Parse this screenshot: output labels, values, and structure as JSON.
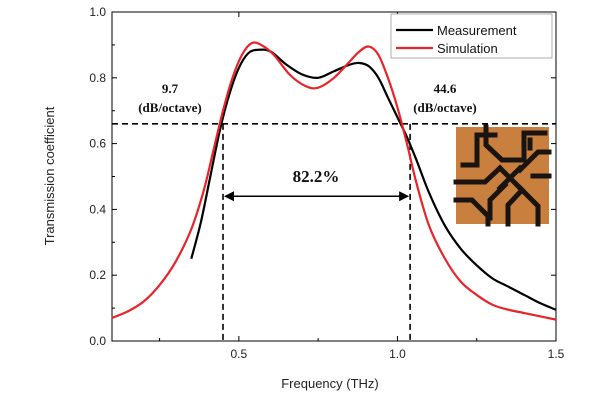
{
  "chart_data": {
    "type": "line",
    "xlabel": "Frequency (THz)",
    "ylabel": "Transmission coefficient",
    "xlim": [
      0.1,
      1.5
    ],
    "ylim": [
      0.0,
      1.0
    ],
    "x_ticks": [
      0.5,
      1.0,
      1.5
    ],
    "x_tick_labels": [
      "0.5",
      "1.0",
      "1.5"
    ],
    "y_ticks": [
      0.0,
      0.2,
      0.4,
      0.6,
      0.8,
      1.0
    ],
    "y_tick_labels": [
      "0.0",
      "0.2",
      "0.4",
      "0.6",
      "0.8",
      "1.0"
    ],
    "legend_position": "top-right",
    "series": [
      {
        "name": "Measurement",
        "color": "#000000",
        "points": [
          [
            0.35,
            0.25
          ],
          [
            0.38,
            0.36
          ],
          [
            0.41,
            0.5
          ],
          [
            0.44,
            0.64
          ],
          [
            0.47,
            0.75
          ],
          [
            0.5,
            0.83
          ],
          [
            0.53,
            0.875
          ],
          [
            0.56,
            0.885
          ],
          [
            0.6,
            0.88
          ],
          [
            0.65,
            0.84
          ],
          [
            0.7,
            0.81
          ],
          [
            0.75,
            0.8
          ],
          [
            0.8,
            0.82
          ],
          [
            0.85,
            0.84
          ],
          [
            0.88,
            0.845
          ],
          [
            0.91,
            0.835
          ],
          [
            0.94,
            0.8
          ],
          [
            0.97,
            0.74
          ],
          [
            1.0,
            0.68
          ],
          [
            1.03,
            0.62
          ],
          [
            1.06,
            0.55
          ],
          [
            1.1,
            0.45
          ],
          [
            1.15,
            0.35
          ],
          [
            1.2,
            0.28
          ],
          [
            1.25,
            0.23
          ],
          [
            1.3,
            0.19
          ],
          [
            1.35,
            0.165
          ],
          [
            1.4,
            0.14
          ],
          [
            1.45,
            0.115
          ],
          [
            1.5,
            0.095
          ]
        ]
      },
      {
        "name": "Simulation",
        "color": "#e8232a",
        "points": [
          [
            0.1,
            0.07
          ],
          [
            0.15,
            0.09
          ],
          [
            0.2,
            0.12
          ],
          [
            0.25,
            0.17
          ],
          [
            0.3,
            0.24
          ],
          [
            0.35,
            0.34
          ],
          [
            0.39,
            0.46
          ],
          [
            0.42,
            0.58
          ],
          [
            0.45,
            0.7
          ],
          [
            0.48,
            0.8
          ],
          [
            0.51,
            0.87
          ],
          [
            0.54,
            0.905
          ],
          [
            0.57,
            0.9
          ],
          [
            0.61,
            0.87
          ],
          [
            0.66,
            0.81
          ],
          [
            0.71,
            0.775
          ],
          [
            0.75,
            0.77
          ],
          [
            0.8,
            0.8
          ],
          [
            0.85,
            0.85
          ],
          [
            0.88,
            0.88
          ],
          [
            0.91,
            0.895
          ],
          [
            0.94,
            0.87
          ],
          [
            0.97,
            0.8
          ],
          [
            1.0,
            0.71
          ],
          [
            1.03,
            0.6
          ],
          [
            1.06,
            0.48
          ],
          [
            1.1,
            0.35
          ],
          [
            1.15,
            0.25
          ],
          [
            1.2,
            0.18
          ],
          [
            1.25,
            0.14
          ],
          [
            1.3,
            0.11
          ],
          [
            1.35,
            0.095
          ],
          [
            1.4,
            0.085
          ],
          [
            1.45,
            0.075
          ],
          [
            1.5,
            0.065
          ]
        ]
      }
    ],
    "reference_lines": {
      "horizontal_y": 0.66,
      "left_cutoff_x": 0.45,
      "right_cutoff_x": 1.04
    },
    "annotations": {
      "left_slope_value": "9.7",
      "left_slope_unit": "(dB/octave)",
      "right_slope_value": "44.6",
      "right_slope_unit": "(dB/octave)",
      "bandwidth": "82.2%"
    },
    "inset": {
      "description_icon": "metamaterial-unit-cell-photo",
      "background_color": "#c9803f",
      "pattern_color": "#1a1410"
    }
  }
}
